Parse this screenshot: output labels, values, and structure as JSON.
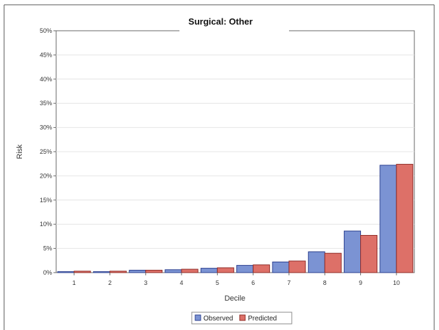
{
  "chart_data": {
    "type": "bar",
    "title": "Surgical: Other",
    "xlabel": "Decile",
    "ylabel": "Risk",
    "categories": [
      "1",
      "2",
      "3",
      "4",
      "5",
      "6",
      "7",
      "8",
      "9",
      "10"
    ],
    "ylim": [
      0,
      50
    ],
    "yticks": [
      "0%",
      "5%",
      "10%",
      "15%",
      "20%",
      "25%",
      "30%",
      "35%",
      "40%",
      "45%",
      "50%"
    ],
    "ytick_values": [
      0,
      5,
      10,
      15,
      20,
      25,
      30,
      35,
      40,
      45,
      50
    ],
    "grid": true,
    "legend_position": "bottom-center",
    "series": [
      {
        "name": "Observed",
        "color": "#7b93d3",
        "stroke": "#2b3f8f",
        "values": [
          0.2,
          0.2,
          0.5,
          0.6,
          0.9,
          1.5,
          2.2,
          4.3,
          8.6,
          22.2
        ]
      },
      {
        "name": "Predicted",
        "color": "#dd7068",
        "stroke": "#8f2b26",
        "values": [
          0.3,
          0.3,
          0.5,
          0.7,
          1.0,
          1.6,
          2.4,
          4.0,
          7.7,
          22.4
        ]
      }
    ]
  }
}
